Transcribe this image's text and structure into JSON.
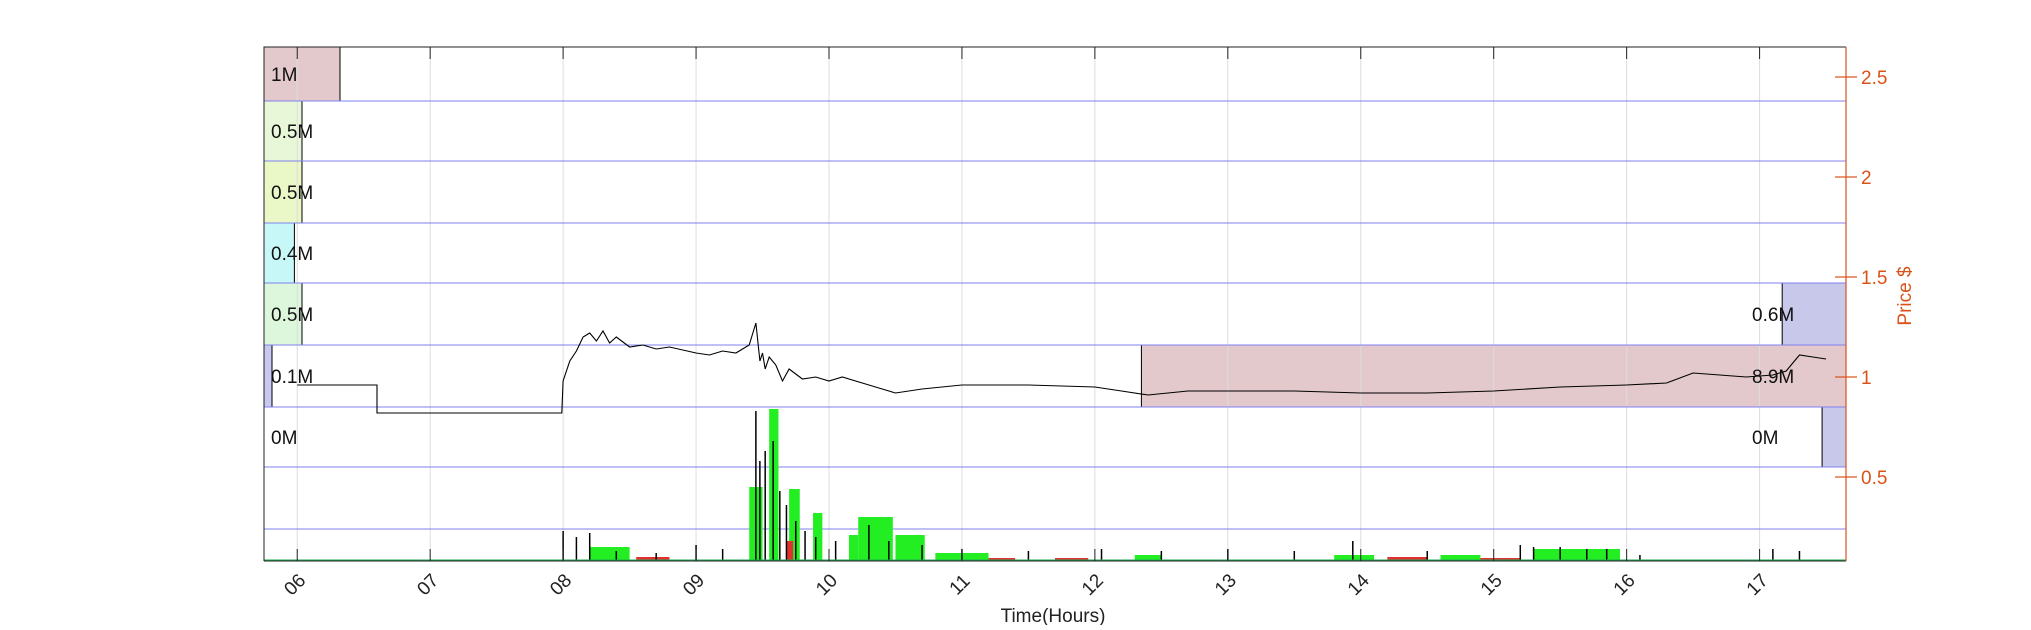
{
  "chart_data": {
    "type": "line",
    "title": "",
    "xlabel": "Time(Hours)",
    "ylabel_right": "Price $",
    "xlim": [
      5.75,
      17.65
    ],
    "ylim": [
      0.08,
      2.65
    ],
    "x_ticks": [
      6,
      7,
      8,
      9,
      10,
      11,
      12,
      13,
      14,
      15,
      16,
      17
    ],
    "x_tick_labels": [
      "06",
      "07",
      "08",
      "09",
      "10",
      "11",
      "12",
      "13",
      "14",
      "15",
      "16",
      "17"
    ],
    "y_ticks": [
      0.5,
      1,
      1.5,
      2,
      2.5
    ],
    "y_tick_labels": [
      "0.5",
      "1",
      "1.5",
      "2",
      "2.5"
    ],
    "grid": true,
    "axis_color": "#d95319",
    "price_series": {
      "name": "",
      "color": "#000000",
      "x": [
        6.0,
        6.3,
        6.6,
        6.6,
        7.0,
        7.4,
        7.6,
        7.99,
        8.0,
        8.05,
        8.1,
        8.15,
        8.2,
        8.25,
        8.3,
        8.35,
        8.4,
        8.5,
        8.6,
        8.7,
        8.8,
        9.0,
        9.1,
        9.2,
        9.3,
        9.4,
        9.45,
        9.48,
        9.5,
        9.52,
        9.55,
        9.6,
        9.65,
        9.7,
        9.8,
        9.9,
        10.0,
        10.1,
        10.2,
        10.3,
        10.4,
        10.5,
        10.7,
        11.0,
        11.5,
        12.0,
        12.2,
        12.4,
        12.7,
        13.0,
        13.5,
        14.0,
        14.5,
        15.0,
        15.5,
        16.0,
        16.3,
        16.5,
        16.7,
        16.9,
        17.1,
        17.2,
        17.25,
        17.3,
        17.4,
        17.5
      ],
      "y": [
        0.96,
        0.96,
        0.96,
        0.82,
        0.82,
        0.82,
        0.82,
        0.82,
        0.98,
        1.08,
        1.13,
        1.2,
        1.22,
        1.18,
        1.23,
        1.17,
        1.2,
        1.15,
        1.16,
        1.14,
        1.15,
        1.12,
        1.11,
        1.13,
        1.12,
        1.16,
        1.27,
        1.08,
        1.12,
        1.04,
        1.1,
        1.06,
        0.98,
        1.04,
        0.99,
        1.0,
        0.98,
        1.0,
        0.98,
        0.96,
        0.94,
        0.92,
        0.94,
        0.96,
        0.96,
        0.95,
        0.93,
        0.91,
        0.93,
        0.93,
        0.93,
        0.92,
        0.92,
        0.93,
        0.95,
        0.96,
        0.97,
        1.02,
        1.01,
        1.0,
        1.01,
        1.03,
        1.07,
        1.11,
        1.1,
        1.09
      ]
    },
    "volume_profile": {
      "label_align": "left",
      "bands": [
        {
          "label": "0M",
          "ylo": 0.55,
          "yhi": 0.85,
          "value": 0.0,
          "color": "#ffffff"
        },
        {
          "label": "0.1M",
          "ylo": 0.85,
          "yhi": 1.16,
          "value": 0.1,
          "color": "#c8c8f0"
        },
        {
          "label": "0.5M",
          "ylo": 1.16,
          "yhi": 1.47,
          "value": 0.5,
          "color": "#dcf7dc"
        },
        {
          "label": "0.4M",
          "ylo": 1.47,
          "yhi": 1.77,
          "value": 0.4,
          "color": "#c7f7f7"
        },
        {
          "label": "0.5M",
          "ylo": 1.77,
          "yhi": 2.08,
          "value": 0.5,
          "color": "#eaf7c7"
        },
        {
          "label": "0.5M",
          "ylo": 2.08,
          "yhi": 2.38,
          "value": 0.5,
          "color": "#e9f7d9"
        },
        {
          "label": "1M",
          "ylo": 2.38,
          "yhi": 2.65,
          "value": 1.0,
          "color": "#e3c9cc"
        }
      ]
    },
    "volume_profile_right": {
      "bands": [
        {
          "label": "0M",
          "ylo": 0.55,
          "yhi": 0.85,
          "x_from": 17.47,
          "color": "#c8c8ea"
        },
        {
          "label": "8.9M",
          "ylo": 0.85,
          "yhi": 1.16,
          "x_from": 12.35,
          "color": "#e3c9cc"
        },
        {
          "label": "0.6M",
          "ylo": 1.16,
          "yhi": 1.47,
          "x_from": 17.17,
          "color": "#c8c8ea"
        }
      ]
    },
    "green_volume_blocks": [
      {
        "x0": 8.2,
        "x1": 8.5,
        "h": 0.07
      },
      {
        "x0": 9.4,
        "x1": 9.5,
        "h": 0.37
      },
      {
        "x0": 9.55,
        "x1": 9.62,
        "h": 0.76
      },
      {
        "x0": 9.7,
        "x1": 9.78,
        "h": 0.36
      },
      {
        "x0": 9.88,
        "x1": 9.95,
        "h": 0.24
      },
      {
        "x0": 10.15,
        "x1": 10.22,
        "h": 0.13
      },
      {
        "x0": 10.22,
        "x1": 10.48,
        "h": 0.22
      },
      {
        "x0": 10.5,
        "x1": 10.72,
        "h": 0.13
      },
      {
        "x0": 10.8,
        "x1": 11.2,
        "h": 0.04
      },
      {
        "x0": 12.3,
        "x1": 12.5,
        "h": 0.03
      },
      {
        "x0": 13.8,
        "x1": 14.1,
        "h": 0.03
      },
      {
        "x0": 14.6,
        "x1": 14.9,
        "h": 0.03
      },
      {
        "x0": 15.3,
        "x1": 15.95,
        "h": 0.06
      }
    ],
    "red_volume_blocks": [
      {
        "x0": 8.55,
        "x1": 8.8,
        "h": 0.02
      },
      {
        "x0": 9.68,
        "x1": 9.73,
        "h": 0.1
      },
      {
        "x0": 11.2,
        "x1": 11.4,
        "h": 0.015
      },
      {
        "x0": 11.7,
        "x1": 11.95,
        "h": 0.015
      },
      {
        "x0": 14.2,
        "x1": 14.5,
        "h": 0.02
      },
      {
        "x0": 14.9,
        "x1": 15.2,
        "h": 0.015
      }
    ],
    "black_volume_spikes": [
      {
        "x": 8.0,
        "h": 0.15
      },
      {
        "x": 8.1,
        "h": 0.12
      },
      {
        "x": 8.2,
        "h": 0.14
      },
      {
        "x": 8.4,
        "h": 0.05
      },
      {
        "x": 8.7,
        "h": 0.04
      },
      {
        "x": 9.0,
        "h": 0.08
      },
      {
        "x": 9.2,
        "h": 0.06
      },
      {
        "x": 9.45,
        "h": 0.75
      },
      {
        "x": 9.48,
        "h": 0.5
      },
      {
        "x": 9.52,
        "h": 0.55
      },
      {
        "x": 9.58,
        "h": 0.6
      },
      {
        "x": 9.63,
        "h": 0.35
      },
      {
        "x": 9.68,
        "h": 0.28
      },
      {
        "x": 9.75,
        "h": 0.2
      },
      {
        "x": 9.82,
        "h": 0.15
      },
      {
        "x": 9.9,
        "h": 0.12
      },
      {
        "x": 10.05,
        "h": 0.1
      },
      {
        "x": 10.3,
        "h": 0.18
      },
      {
        "x": 10.45,
        "h": 0.1
      },
      {
        "x": 10.7,
        "h": 0.08
      },
      {
        "x": 11.0,
        "h": 0.06
      },
      {
        "x": 11.5,
        "h": 0.05
      },
      {
        "x": 12.05,
        "h": 0.06
      },
      {
        "x": 12.5,
        "h": 0.05
      },
      {
        "x": 13.0,
        "h": 0.06
      },
      {
        "x": 13.5,
        "h": 0.05
      },
      {
        "x": 13.94,
        "h": 0.1
      },
      {
        "x": 14.5,
        "h": 0.05
      },
      {
        "x": 15.2,
        "h": 0.08
      },
      {
        "x": 15.3,
        "h": 0.07
      },
      {
        "x": 15.5,
        "h": 0.07
      },
      {
        "x": 15.7,
        "h": 0.06
      },
      {
        "x": 15.85,
        "h": 0.06
      },
      {
        "x": 16.1,
        "h": 0.03
      },
      {
        "x": 17.1,
        "h": 0.06
      },
      {
        "x": 17.3,
        "h": 0.05
      }
    ]
  }
}
